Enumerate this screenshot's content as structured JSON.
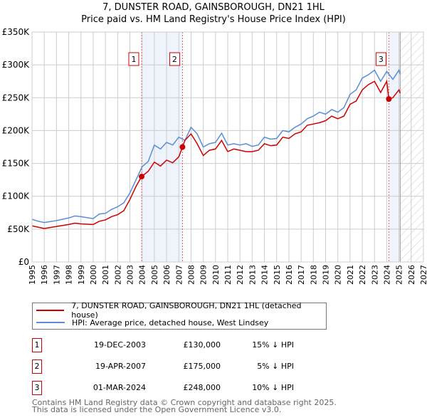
{
  "chart_data": {
    "type": "line",
    "title": "7, DUNSTER ROAD, GAINSBOROUGH, DN21 1HL",
    "subtitle": "Price paid vs. HM Land Registry's House Price Index (HPI)",
    "xlim": [
      1995,
      2027
    ],
    "ylim": [
      0,
      350000
    ],
    "x_ticks": [
      "1995",
      "1996",
      "1997",
      "1998",
      "1999",
      "2000",
      "2001",
      "2002",
      "2003",
      "2004",
      "2005",
      "2006",
      "2007",
      "2008",
      "2009",
      "2010",
      "2011",
      "2012",
      "2013",
      "2014",
      "2015",
      "2016",
      "2017",
      "2018",
      "2019",
      "2020",
      "2021",
      "2022",
      "2023",
      "2024",
      "2025",
      "2026",
      "2027"
    ],
    "y_ticks": [
      {
        "v": 0,
        "label": "£0"
      },
      {
        "v": 50000,
        "label": "£50K"
      },
      {
        "v": 100000,
        "label": "£100K"
      },
      {
        "v": 150000,
        "label": "£150K"
      },
      {
        "v": 200000,
        "label": "£200K"
      },
      {
        "v": 250000,
        "label": "£250K"
      },
      {
        "v": 300000,
        "label": "£300K"
      },
      {
        "v": 350000,
        "label": "£350K"
      }
    ],
    "grid": true,
    "series": [
      {
        "name": "7, DUNSTER ROAD, GAINSBOROUGH, DN21 1HL (detached house)",
        "color": "#cc0000",
        "x": [
          1995,
          1995.5,
          1996,
          1997,
          1998,
          1998.5,
          1999,
          2000,
          2000.5,
          2001,
          2001.5,
          2002,
          2002.5,
          2003,
          2003.5,
          2003.96,
          2004.5,
          2005,
          2005.5,
          2006,
          2006.5,
          2007,
          2007.3,
          2007.5,
          2008,
          2008.5,
          2009,
          2009.5,
          2010,
          2010.5,
          2011,
          2011.5,
          2012,
          2012.5,
          2013,
          2013.5,
          2014,
          2014.5,
          2015,
          2015.5,
          2016,
          2016.5,
          2017,
          2017.5,
          2018,
          2018.5,
          2019,
          2019.5,
          2020,
          2020.5,
          2021,
          2021.5,
          2022,
          2022.5,
          2023,
          2023.5,
          2024,
          2024.17,
          2024.5,
          2025,
          2025.1
        ],
        "values": [
          55000,
          53000,
          51000,
          54000,
          57000,
          59000,
          58000,
          57000,
          62000,
          64000,
          69000,
          72000,
          78000,
          95000,
          115000,
          130000,
          138000,
          152000,
          146000,
          155000,
          151000,
          160000,
          175000,
          185000,
          195000,
          180000,
          162000,
          170000,
          172000,
          185000,
          168000,
          172000,
          170000,
          168000,
          168000,
          170000,
          180000,
          177000,
          178000,
          190000,
          188000,
          195000,
          198000,
          208000,
          210000,
          212000,
          215000,
          222000,
          218000,
          222000,
          240000,
          245000,
          262000,
          270000,
          275000,
          258000,
          275000,
          248000,
          250000,
          262000,
          257000
        ]
      },
      {
        "name": "HPI: Average price, detached house, West Lindsey",
        "color": "#5b8ed6",
        "x": [
          1995,
          1995.5,
          1996,
          1997,
          1998,
          1998.5,
          1999,
          2000,
          2000.5,
          2001,
          2001.5,
          2002,
          2002.5,
          2003,
          2003.5,
          2004,
          2004.5,
          2005,
          2005.5,
          2006,
          2006.5,
          2007,
          2007.5,
          2008,
          2008.5,
          2009,
          2009.5,
          2010,
          2010.5,
          2011,
          2011.5,
          2012,
          2012.5,
          2013,
          2013.5,
          2014,
          2014.5,
          2015,
          2015.5,
          2016,
          2016.5,
          2017,
          2017.5,
          2018,
          2018.5,
          2019,
          2019.5,
          2020,
          2020.5,
          2021,
          2021.5,
          2022,
          2022.5,
          2023,
          2023.5,
          2024,
          2024.5,
          2025,
          2025.1
        ],
        "values": [
          65000,
          62000,
          60000,
          63000,
          67000,
          70000,
          69000,
          66000,
          73000,
          74000,
          80000,
          84000,
          90000,
          105000,
          125000,
          145000,
          153000,
          178000,
          172000,
          182000,
          178000,
          190000,
          185000,
          205000,
          195000,
          175000,
          180000,
          182000,
          196000,
          178000,
          180000,
          178000,
          180000,
          176000,
          178000,
          190000,
          187000,
          188000,
          200000,
          198000,
          205000,
          210000,
          218000,
          222000,
          228000,
          225000,
          232000,
          228000,
          235000,
          255000,
          262000,
          280000,
          285000,
          292000,
          275000,
          290000,
          278000,
          292000,
          286000
        ]
      }
    ],
    "sales": [
      {
        "n": "1",
        "x": 2003.96,
        "price": 130000,
        "date": "19-DEC-2003",
        "price_label": "£130,000",
        "hpi": "15% ↓ HPI"
      },
      {
        "n": "2",
        "x": 2007.3,
        "price": 175000,
        "date": "19-APR-2007",
        "price_label": "£175,000",
        "hpi": "5% ↓ HPI"
      },
      {
        "n": "3",
        "x": 2024.17,
        "price": 248000,
        "date": "01-MAR-2024",
        "price_label": "£248,000",
        "hpi": "10% ↓ HPI"
      }
    ],
    "shaded_spans": [
      [
        2003.96,
        2007.3
      ],
      [
        2024.17,
        2025.1
      ]
    ],
    "forecast_hatch_from": 2025.1
  },
  "footer": {
    "line1": "Contains HM Land Registry data © Crown copyright and database right 2025.",
    "line2": "This data is licensed under the Open Government Licence v3.0."
  }
}
